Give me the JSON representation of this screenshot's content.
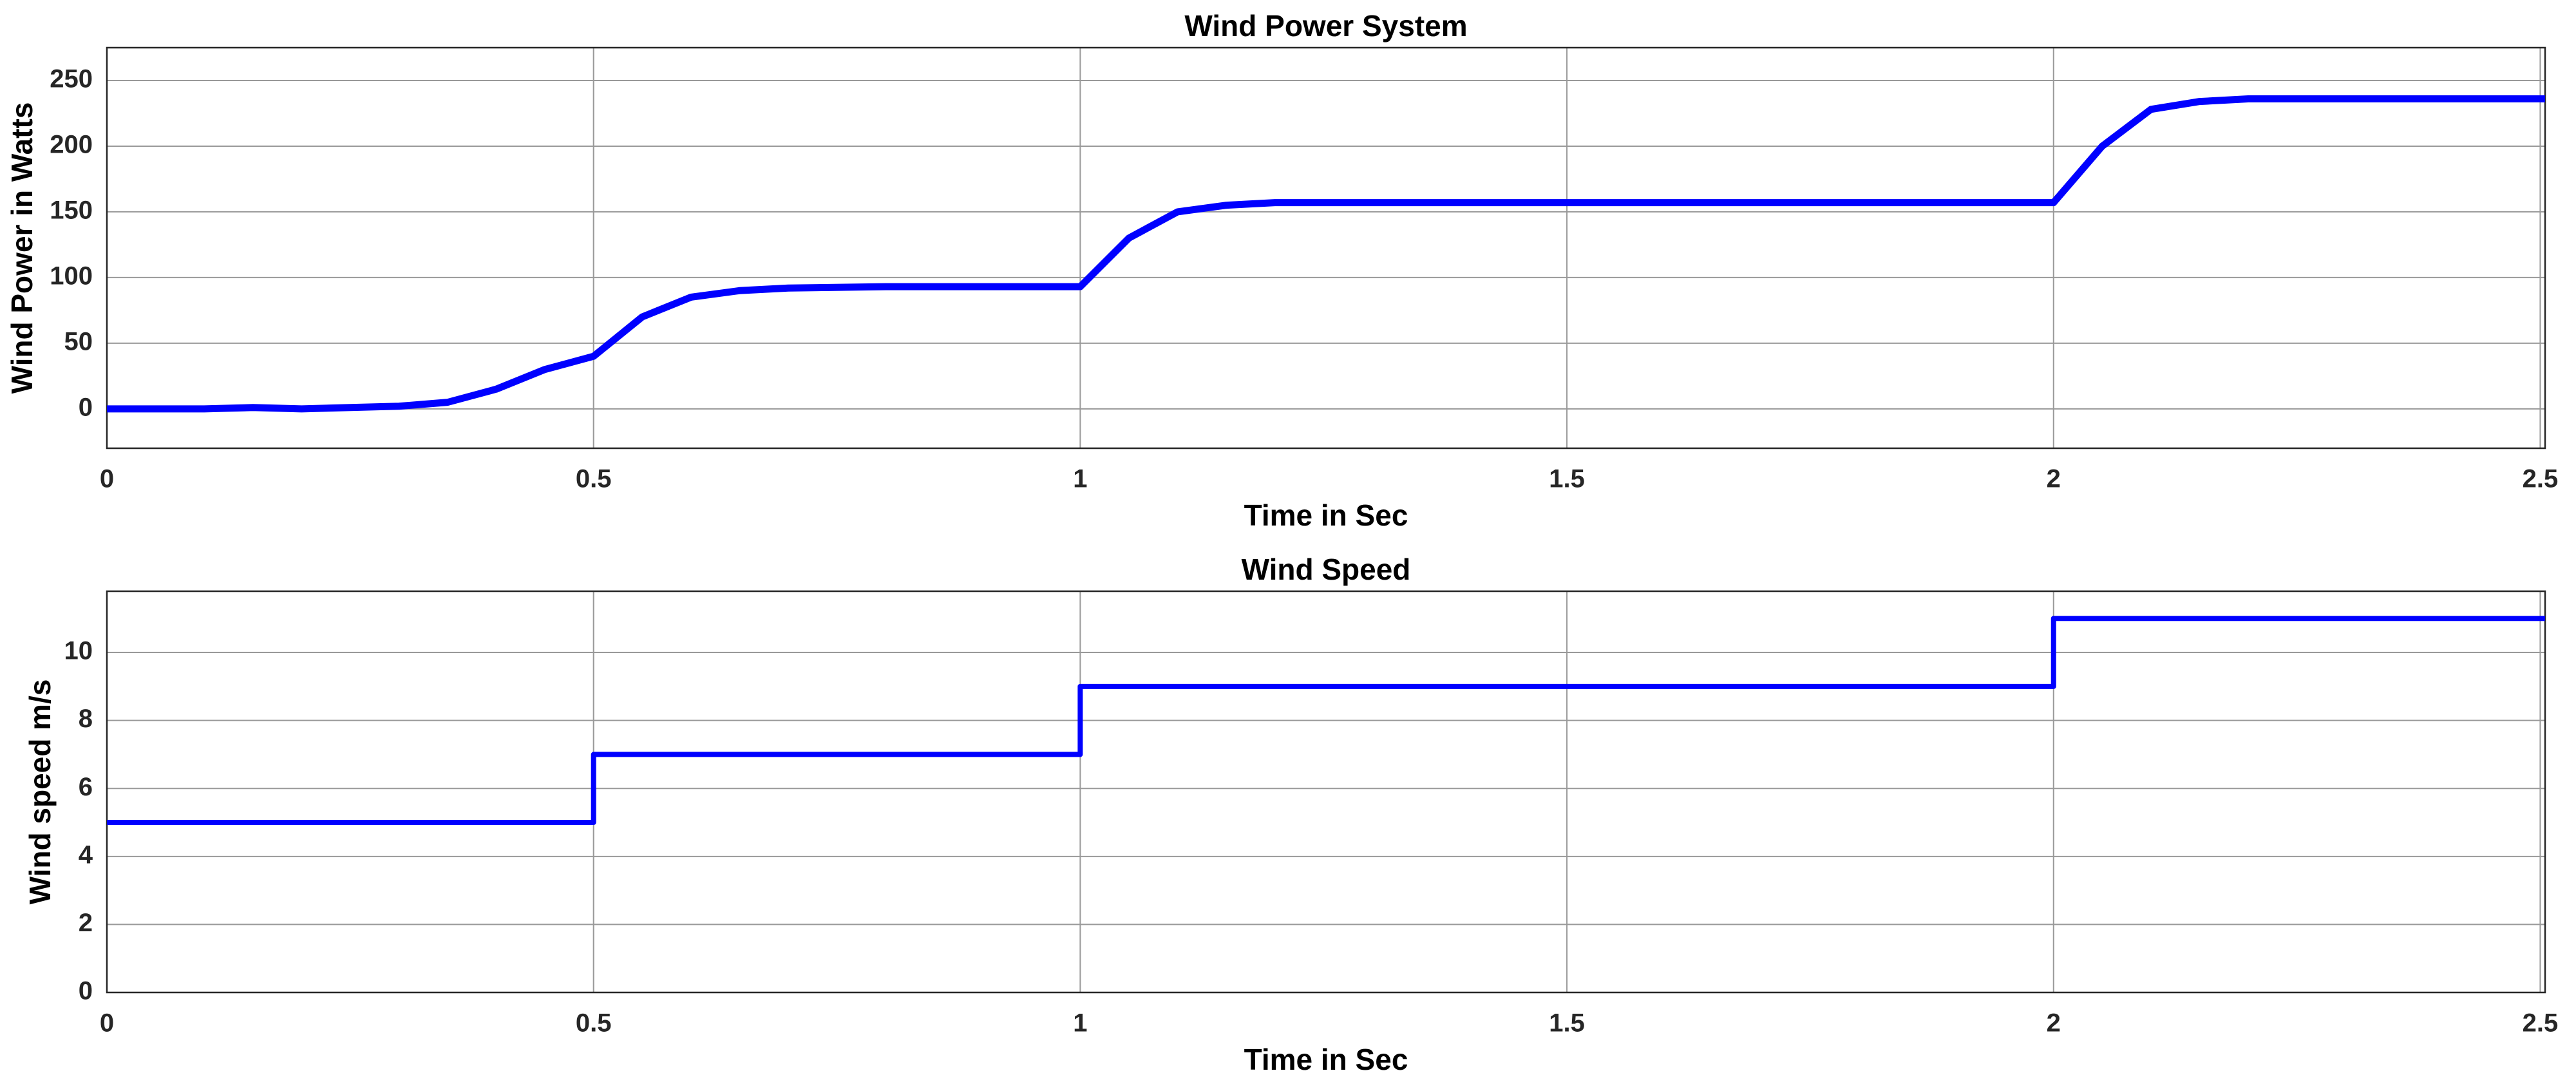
{
  "chart_data": [
    {
      "type": "line",
      "title": "Wind Power System",
      "xlabel": "Time in Sec",
      "ylabel": "Wind Power in Watts",
      "x": [
        0,
        0.1,
        0.15,
        0.2,
        0.25,
        0.3,
        0.35,
        0.4,
        0.45,
        0.5,
        0.55,
        0.6,
        0.65,
        0.7,
        0.8,
        0.9,
        1.0,
        1.05,
        1.1,
        1.15,
        1.2,
        1.5,
        2.0,
        2.05,
        2.1,
        2.15,
        2.2,
        2.505
      ],
      "series": [
        {
          "color": "#0000ff",
          "values": [
            0,
            0,
            1,
            0,
            1,
            2,
            5,
            15,
            30,
            40,
            70,
            85,
            90,
            92,
            93,
            93,
            93,
            130,
            150,
            155,
            157,
            157,
            157,
            200,
            228,
            234,
            236,
            236
          ]
        }
      ],
      "xlim": [
        0,
        2.505
      ],
      "xticks": [
        0,
        0.5,
        1,
        1.5,
        2,
        2.5
      ],
      "ylim": [
        -30,
        275
      ],
      "yticks": [
        0,
        50,
        100,
        150,
        200,
        250
      ],
      "grid": true
    },
    {
      "type": "line",
      "title": "Wind Speed",
      "xlabel": "Time in Sec",
      "ylabel": "Wind speed m/s",
      "x": [
        0,
        0.5,
        0.5,
        1,
        1,
        2,
        2,
        2.505
      ],
      "series": [
        {
          "color": "#0000ff",
          "values": [
            5,
            5,
            7,
            7,
            9,
            9,
            11,
            11
          ]
        }
      ],
      "xlim": [
        0,
        2.505
      ],
      "xticks": [
        0,
        0.5,
        1,
        1.5,
        2,
        2.5
      ],
      "ylim": [
        0,
        11.8
      ],
      "yticks": [
        0,
        2,
        4,
        6,
        8,
        10
      ],
      "grid": true
    }
  ]
}
